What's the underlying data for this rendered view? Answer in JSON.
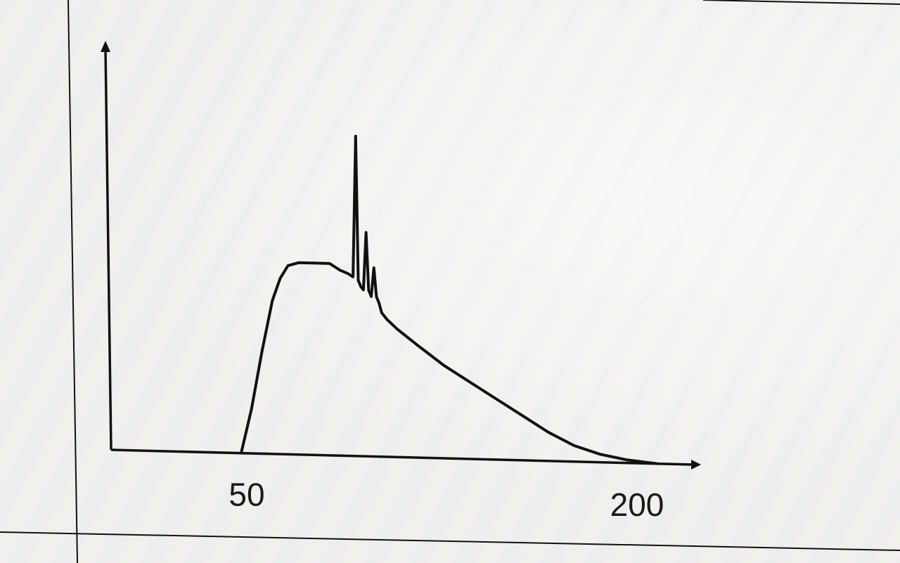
{
  "chart_data": {
    "type": "line",
    "title": "",
    "xlabel": "",
    "ylabel": "",
    "x_ticks": [
      50,
      200
    ],
    "xlim": [
      0,
      225
    ],
    "ylim": [
      0,
      10
    ],
    "grid": false,
    "series": [
      {
        "x": [
          50,
          54,
          58,
          62,
          65,
          68,
          72,
          78,
          84,
          88,
          91,
          93,
          94,
          95,
          96,
          97,
          98,
          99,
          100,
          101,
          102,
          103,
          104,
          106,
          110,
          118,
          128,
          138,
          148,
          158,
          168,
          178,
          188,
          198,
          210
        ],
        "y": [
          0,
          1.4,
          3.2,
          4.8,
          5.5,
          5.9,
          6.0,
          6.0,
          6.0,
          5.8,
          5.7,
          5.6,
          10.0,
          5.5,
          5.3,
          5.2,
          7.0,
          5.2,
          5.0,
          5.9,
          5.0,
          4.8,
          4.5,
          4.3,
          4.0,
          3.5,
          2.9,
          2.4,
          1.9,
          1.4,
          0.9,
          0.5,
          0.25,
          0.1,
          0.0
        ]
      }
    ]
  }
}
